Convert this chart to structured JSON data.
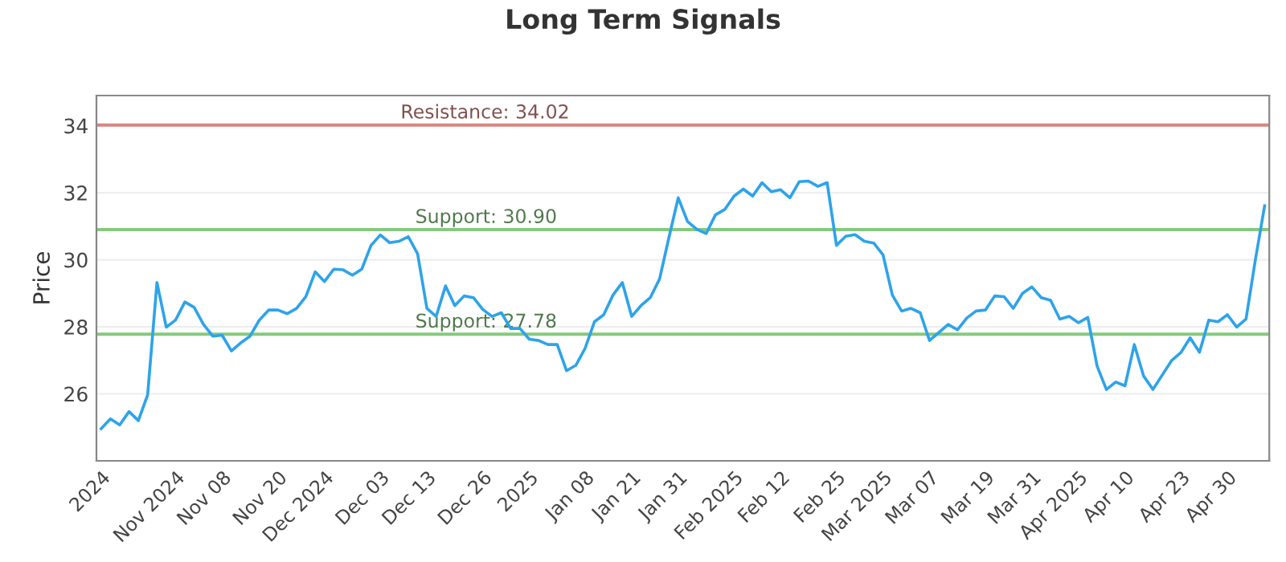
{
  "chart_data": {
    "type": "line",
    "title": "Long Term Signals",
    "ylabel": "Price",
    "categories": [
      "2024",
      null,
      null,
      null,
      null,
      null,
      null,
      null,
      "Nov 2024",
      null,
      null,
      null,
      null,
      "Nov 08",
      null,
      null,
      null,
      null,
      null,
      "Nov 20",
      null,
      null,
      null,
      null,
      "Dec 2024",
      null,
      null,
      null,
      null,
      null,
      "Dec 03",
      null,
      null,
      null,
      null,
      "Dec 13",
      null,
      null,
      null,
      null,
      null,
      "Dec 26",
      null,
      null,
      null,
      null,
      "2025",
      null,
      null,
      null,
      null,
      null,
      "Jan 08",
      null,
      null,
      null,
      null,
      "Jan 21",
      null,
      null,
      null,
      null,
      "Jan 31",
      null,
      null,
      null,
      null,
      null,
      "Feb 2025",
      null,
      null,
      null,
      null,
      "Feb 12",
      null,
      null,
      null,
      null,
      null,
      "Feb 25",
      null,
      null,
      null,
      null,
      "Mar 2025",
      null,
      null,
      null,
      null,
      "Mar 07",
      null,
      null,
      null,
      null,
      null,
      "Mar 19",
      null,
      null,
      null,
      null,
      "Mar 31",
      null,
      null,
      null,
      null,
      "Apr 2025",
      null,
      null,
      null,
      null,
      "Apr 10",
      null,
      null,
      null,
      null,
      null,
      "Apr 23",
      null,
      null,
      null,
      null,
      "Apr 30",
      null,
      null,
      null,
      null
    ],
    "series": [
      {
        "color": "#2ea3ea",
        "values": [
          24.96,
          25.25,
          25.07,
          25.47,
          25.2,
          25.97,
          29.32,
          27.99,
          28.2,
          28.74,
          28.58,
          28.07,
          27.72,
          27.75,
          27.28,
          27.52,
          27.72,
          28.2,
          28.5,
          28.5,
          28.39,
          28.55,
          28.9,
          29.64,
          29.35,
          29.72,
          29.7,
          29.54,
          29.72,
          30.43,
          30.74,
          30.51,
          30.55,
          30.69,
          30.18,
          28.55,
          28.31,
          29.22,
          28.63,
          28.92,
          28.87,
          28.52,
          28.31,
          28.42,
          27.95,
          27.95,
          27.63,
          27.59,
          27.47,
          27.47,
          26.69,
          26.85,
          27.36,
          28.15,
          28.36,
          28.95,
          29.32,
          28.31,
          28.63,
          28.87,
          29.43,
          30.66,
          31.85,
          31.14,
          30.91,
          30.78,
          31.34,
          31.5,
          31.9,
          32.11,
          31.9,
          32.3,
          32.03,
          32.09,
          31.85,
          32.33,
          32.35,
          32.19,
          32.3,
          30.43,
          30.7,
          30.75,
          30.55,
          30.5,
          30.15,
          28.95,
          28.47,
          28.55,
          28.42,
          27.59,
          27.83,
          28.07,
          27.91,
          28.26,
          28.47,
          28.5,
          28.92,
          28.9,
          28.55,
          29.0,
          29.19,
          28.87,
          28.79,
          28.23,
          28.31,
          28.12,
          28.28,
          26.83,
          26.13,
          26.35,
          26.24,
          27.47,
          26.53,
          26.13,
          26.56,
          26.99,
          27.23,
          27.67,
          27.24,
          28.2,
          28.15,
          28.36,
          27.99,
          28.23,
          29.99,
          31.61
        ]
      }
    ],
    "ylim": [
      24,
      34.9
    ],
    "yticks": [
      26,
      28,
      30,
      32,
      34
    ],
    "grid": "y",
    "marker": "none",
    "line_style": "solid",
    "ref_lines": [
      {
        "axis": "y",
        "value": 34.02,
        "label": "Resistance: 34.02",
        "color": "#d98680"
      },
      {
        "axis": "y",
        "value": 30.9,
        "label": "Support: 30.90",
        "color": "#85c97e"
      },
      {
        "axis": "y",
        "value": 27.78,
        "label": "Support: 27.78",
        "color": "#85c97e"
      }
    ]
  }
}
